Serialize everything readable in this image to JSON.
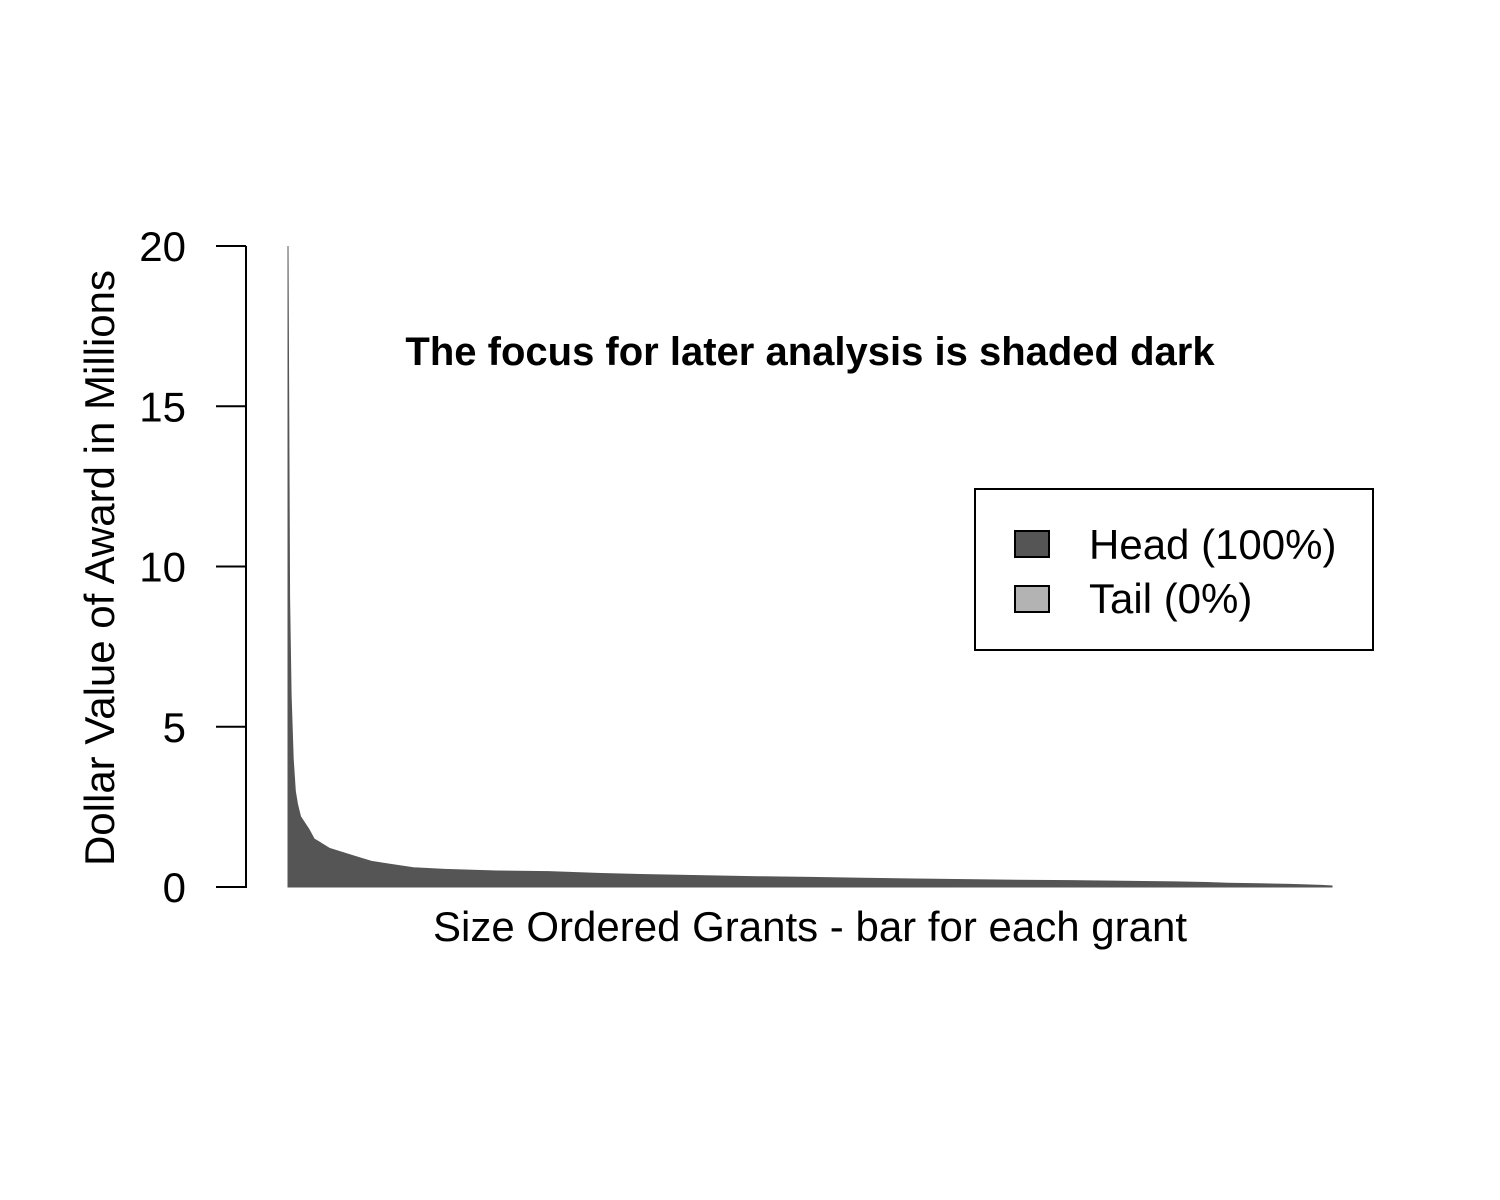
{
  "chart_data": {
    "type": "bar",
    "title": "The focus for later analysis is shaded dark",
    "xlabel": "Size Ordered Grants - bar for each grant",
    "ylabel": "Dollar Value of Award in Millions",
    "ylim": [
      0,
      20
    ],
    "yticks": [
      "0",
      "5",
      "10",
      "15",
      "20"
    ],
    "grid": false,
    "legend_position": "right",
    "legend": [
      {
        "label": "Head (100%)",
        "color": "#555555"
      },
      {
        "label": "Tail (0%)",
        "color": "#b3b3b3"
      }
    ],
    "series": [
      {
        "name": "Head (100%)",
        "color": "#555555",
        "rank_fraction": [
          0.0,
          0.0015,
          0.003,
          0.005,
          0.007,
          0.009,
          0.012,
          0.016,
          0.02,
          0.025,
          0.03,
          0.035,
          0.04,
          0.05,
          0.06,
          0.07,
          0.08,
          0.1,
          0.12,
          0.15,
          0.2,
          0.25,
          0.3,
          0.35,
          0.4,
          0.45,
          0.5,
          0.55,
          0.6,
          0.65,
          0.7,
          0.75,
          0.8,
          0.85,
          0.88,
          0.9,
          0.93,
          0.96,
          0.99,
          1.0
        ],
        "values": [
          20.0,
          9.0,
          6.0,
          4.0,
          3.0,
          2.6,
          2.2,
          2.0,
          1.8,
          1.5,
          1.4,
          1.3,
          1.2,
          1.1,
          1.0,
          0.9,
          0.8,
          0.7,
          0.6,
          0.55,
          0.5,
          0.48,
          0.42,
          0.38,
          0.35,
          0.32,
          0.3,
          0.27,
          0.25,
          0.23,
          0.21,
          0.2,
          0.18,
          0.16,
          0.14,
          0.12,
          0.1,
          0.08,
          0.05,
          0.03
        ]
      }
    ]
  }
}
